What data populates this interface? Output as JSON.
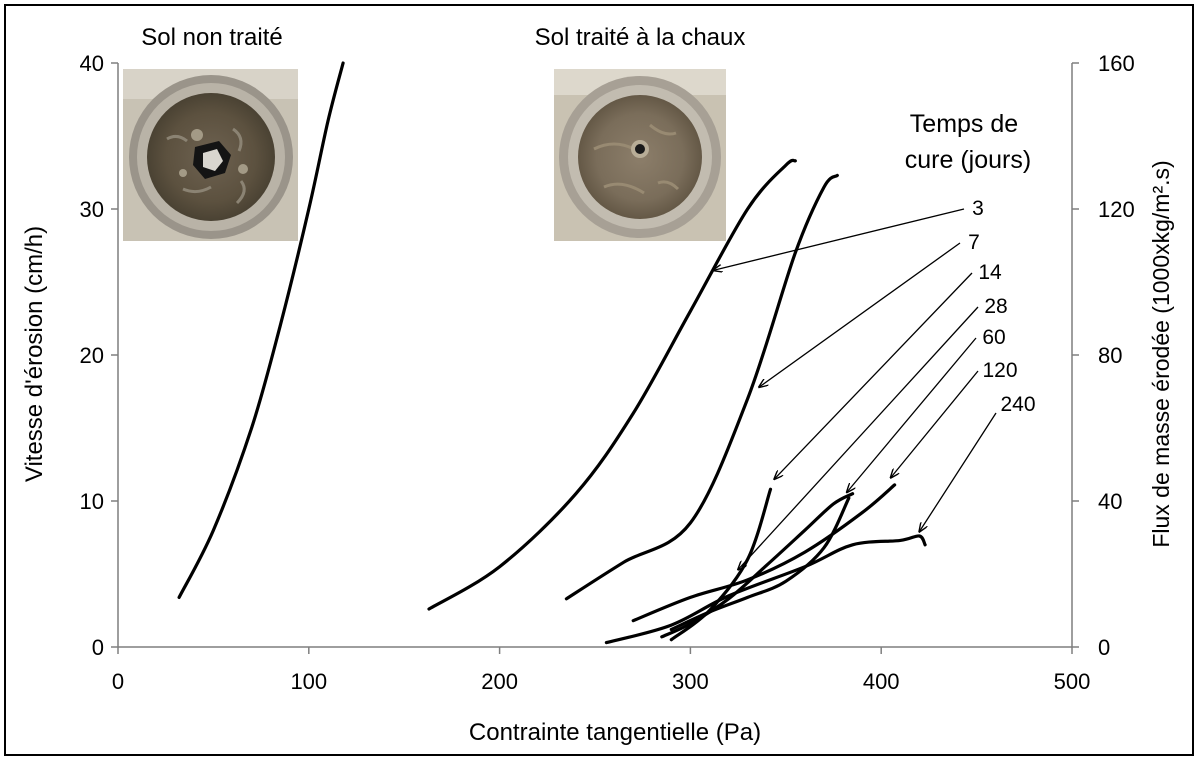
{
  "chart_data": {
    "type": "line",
    "title_left": "Sol non traité",
    "title_right": "Sol traité à la chaux",
    "xlabel": "Contrainte tangentielle  (Pa)",
    "ylabel": "Vitesse d'érosion (cm/h)",
    "ylabel_right": "Flux de masse érodée (1000xkg/m².s)",
    "xlim": [
      0,
      500
    ],
    "ylim": [
      0,
      40
    ],
    "ylim_right": [
      0,
      160
    ],
    "x_ticks": [
      "0",
      "100",
      "200",
      "300",
      "400",
      "500"
    ],
    "y_ticks": [
      "0",
      "10",
      "20",
      "30",
      "40"
    ],
    "y_ticks_right": [
      "0",
      "40",
      "80",
      "120",
      "160"
    ],
    "legend_title": "Temps de cure (jours)",
    "legend_title_lines": [
      "Temps de",
      "cure (jours)"
    ],
    "series": [
      {
        "name": "",
        "x": [
          32,
          50,
          70,
          85,
          100,
          110,
          118
        ],
        "y": [
          3.4,
          8,
          15,
          22,
          30,
          36,
          40
        ]
      },
      {
        "name": "3",
        "x": [
          163,
          200,
          240,
          270,
          300,
          330,
          350,
          355
        ],
        "y": [
          2.6,
          5.5,
          10.5,
          16,
          23,
          30,
          33,
          33.3
        ]
      },
      {
        "name": "7",
        "x": [
          235,
          265,
          300,
          330,
          355,
          370,
          377
        ],
        "y": [
          3.3,
          5.8,
          8.5,
          17,
          27,
          31.5,
          32.3
        ]
      },
      {
        "name": "14",
        "x": [
          290,
          310,
          330,
          342
        ],
        "y": [
          0.5,
          2.5,
          6,
          10.8
        ]
      },
      {
        "name": "28",
        "x": [
          285,
          300,
          320,
          340,
          360,
          375,
          385
        ],
        "y": [
          0.7,
          1.6,
          3.3,
          5.6,
          8.0,
          9.8,
          10.5
        ]
      },
      {
        "name": "60",
        "x": [
          290,
          310,
          330,
          350,
          370,
          383
        ],
        "y": [
          1.2,
          2.4,
          3.4,
          4.5,
          6.8,
          10.2
        ]
      },
      {
        "name": "120",
        "x": [
          270,
          300,
          330,
          360,
          390,
          407
        ],
        "y": [
          1.8,
          3.4,
          4.6,
          6.5,
          9.2,
          11.1
        ]
      },
      {
        "name": "240",
        "x": [
          256,
          290,
          320,
          360,
          385,
          410,
          420,
          423
        ],
        "y": [
          0.3,
          1.5,
          3.5,
          5.5,
          7.0,
          7.3,
          7.6,
          7.0
        ]
      }
    ],
    "annotations": [
      {
        "label": "3",
        "target_x": 312,
        "target_y": 25.8
      },
      {
        "label": "7",
        "target_x": 336,
        "target_y": 17.8
      },
      {
        "label": "14",
        "target_x": 344,
        "target_y": 11.5
      },
      {
        "label": "28",
        "target_x": 325,
        "target_y": 5.3
      },
      {
        "label": "60",
        "target_x": 382,
        "target_y": 10.6
      },
      {
        "label": "120",
        "target_x": 405,
        "target_y": 11.6
      },
      {
        "label": "240",
        "target_x": 420,
        "target_y": 7.9
      }
    ],
    "images": [
      {
        "name": "untreated-soil-sample-photo",
        "description": "Sol non traité"
      },
      {
        "name": "lime-treated-soil-sample-photo",
        "description": "Sol traité à la chaux"
      }
    ],
    "grid": false,
    "line_color": "#000000"
  }
}
